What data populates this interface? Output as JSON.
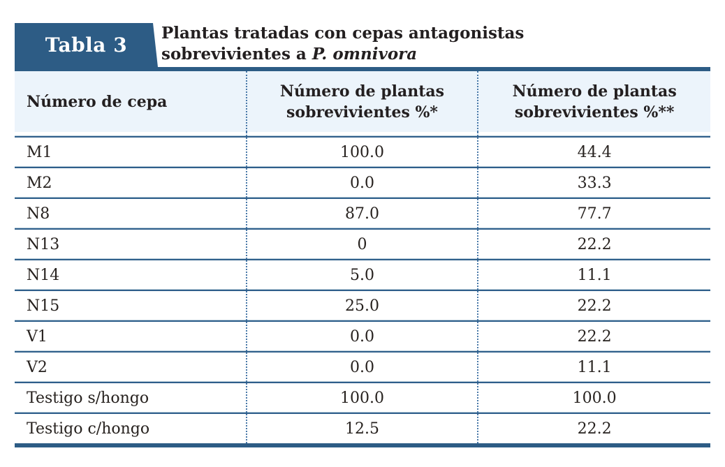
{
  "badge": {
    "label": "Tabla 3"
  },
  "title": {
    "line1": "Plantas tratadas con cepas antagonistas",
    "line2_prefix": "sobrevivientes a ",
    "line2_italic": "P. omnivora"
  },
  "table": {
    "columns": [
      "Número de cepa",
      "Número de plantas sobrevivientes %*",
      "Número de plantas sobrevivientes %**"
    ],
    "rows": [
      {
        "cepa": "M1",
        "pct1": "100.0",
        "pct2": "44.4"
      },
      {
        "cepa": "M2",
        "pct1": "0.0",
        "pct2": "33.3"
      },
      {
        "cepa": "N8",
        "pct1": "87.0",
        "pct2": "77.7"
      },
      {
        "cepa": "N13",
        "pct1": "0",
        "pct2": "22.2"
      },
      {
        "cepa": "N14",
        "pct1": "5.0",
        "pct2": "11.1"
      },
      {
        "cepa": "N15",
        "pct1": "25.0",
        "pct2": "22.2"
      },
      {
        "cepa": "V1",
        "pct1": "0.0",
        "pct2": "22.2"
      },
      {
        "cepa": "V2",
        "pct1": "0.0",
        "pct2": "11.1"
      },
      {
        "cepa": "Testigo s/hongo",
        "pct1": "100.0",
        "pct2": "100.0"
      },
      {
        "cepa": "Testigo c/hongo",
        "pct1": "12.5",
        "pct2": "22.2"
      }
    ]
  },
  "colors": {
    "accent_dark_blue": "#2d5c85",
    "header_row_bg": "#ecf4fb",
    "dotted_divider": "#4878a8",
    "separator_highlight": "#b9cdda",
    "text": "#231f20",
    "badge_text": "#ffffff"
  },
  "chart_data": {
    "type": "table",
    "title": "Tabla 3 — Plantas tratadas con cepas antagonistas sobrevivientes a P. omnivora",
    "columns": [
      "Número de cepa",
      "Número de plantas sobrevivientes %*",
      "Número de plantas sobrevivientes %**"
    ],
    "rows": [
      [
        "M1",
        100.0,
        44.4
      ],
      [
        "M2",
        0.0,
        33.3
      ],
      [
        "N8",
        87.0,
        77.7
      ],
      [
        "N13",
        0,
        22.2
      ],
      [
        "N14",
        5.0,
        11.1
      ],
      [
        "N15",
        25.0,
        22.2
      ],
      [
        "V1",
        0.0,
        22.2
      ],
      [
        "V2",
        0.0,
        11.1
      ],
      [
        "Testigo s/hongo",
        100.0,
        100.0
      ],
      [
        "Testigo c/hongo",
        12.5,
        22.2
      ]
    ]
  }
}
